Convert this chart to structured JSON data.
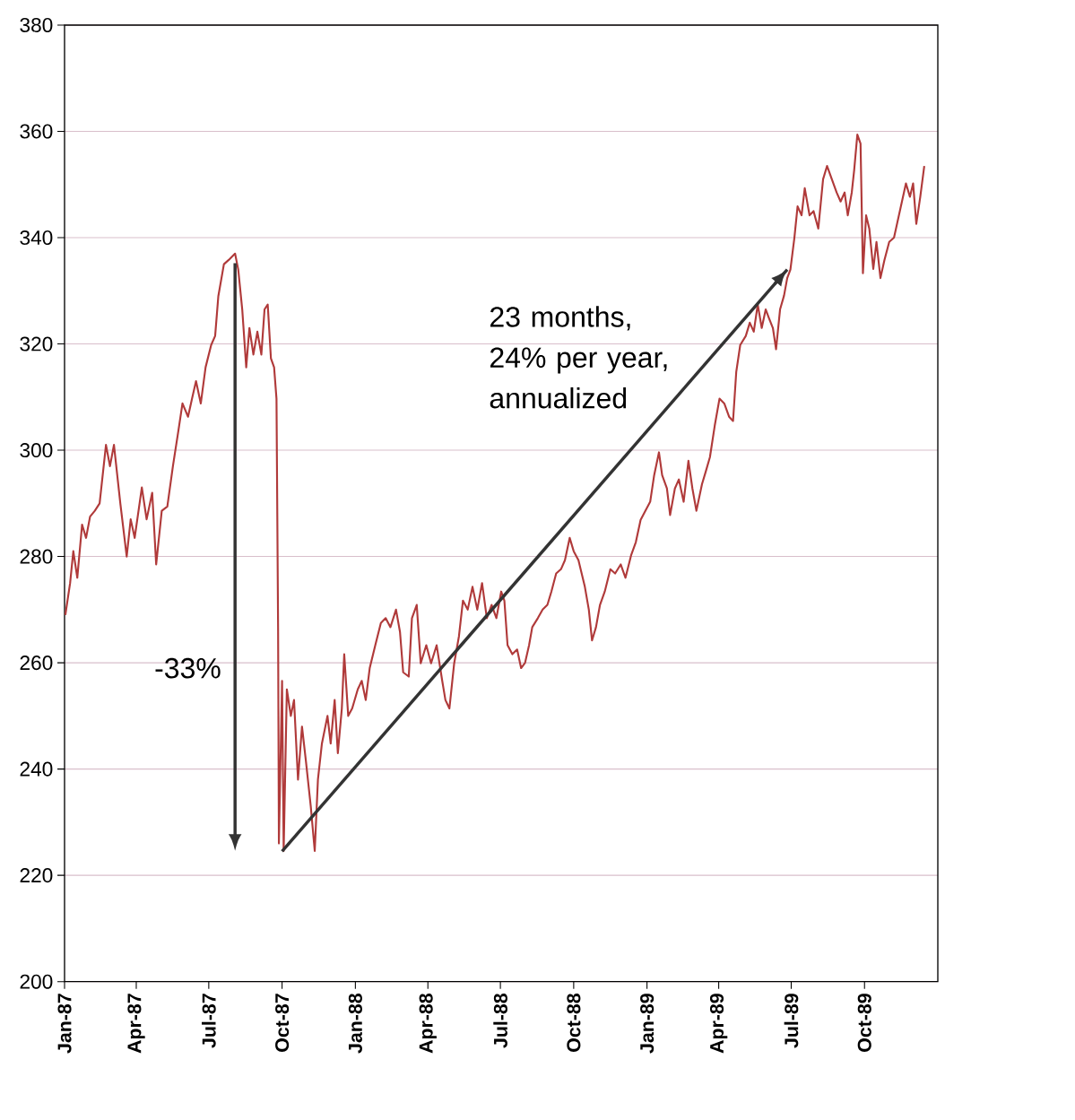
{
  "chart_data": {
    "type": "line",
    "grid": "y",
    "color": "#b03a3a",
    "xlim": [
      "1987-01-01",
      "1990-01-01"
    ],
    "ylim": [
      200,
      380
    ],
    "yticks": [
      200,
      220,
      240,
      260,
      280,
      300,
      320,
      340,
      360,
      380
    ],
    "xticks": [
      {
        "value": "1987-01-01",
        "label": "Jan-87"
      },
      {
        "value": "1987-04-01",
        "label": "Apr-87"
      },
      {
        "value": "1987-07-01",
        "label": "Jul-87"
      },
      {
        "value": "1987-10-01",
        "label": "Oct-87"
      },
      {
        "value": "1988-01-01",
        "label": "Jan-88"
      },
      {
        "value": "1988-04-01",
        "label": "Apr-88"
      },
      {
        "value": "1988-07-01",
        "label": "Jul-88"
      },
      {
        "value": "1988-10-01",
        "label": "Oct-88"
      },
      {
        "value": "1989-01-01",
        "label": "Jan-89"
      },
      {
        "value": "1989-04-01",
        "label": "Apr-89"
      },
      {
        "value": "1989-07-01",
        "label": "Jul-89"
      },
      {
        "value": "1989-10-01",
        "label": "Oct-89"
      }
    ],
    "annotations": [
      "-33%",
      "23 months, 24% per year, annualized"
    ],
    "series": [
      {
        "type": "line",
        "color": "#333333",
        "x": [
          "1987-10-01",
          "1989-06-26"
        ],
        "values": [
          224.5,
          334
        ]
      }
    ],
    "x": [
      "1987-01-02",
      "1987-01-08",
      "1987-01-12",
      "1987-01-17",
      "1987-01-23",
      "1987-01-28",
      "1987-02-02",
      "1987-02-08",
      "1987-02-14",
      "1987-02-22",
      "1987-02-27",
      "1987-03-04",
      "1987-03-12",
      "1987-03-20",
      "1987-03-25",
      "1987-03-30",
      "1987-04-08",
      "1987-04-14",
      "1987-04-21",
      "1987-04-26",
      "1987-05-03",
      "1987-05-10",
      "1987-05-17",
      "1987-05-24",
      "1987-05-29",
      "1987-06-05",
      "1987-06-10",
      "1987-06-15",
      "1987-06-21",
      "1987-06-27",
      "1987-07-04",
      "1987-07-09",
      "1987-07-13",
      "1987-07-20",
      "1987-07-26",
      "1987-08-03",
      "1987-08-07",
      "1987-08-12",
      "1987-08-17",
      "1987-08-21",
      "1987-08-26",
      "1987-08-31",
      "1987-09-05",
      "1987-09-09",
      "1987-09-13",
      "1987-09-17",
      "1987-09-21",
      "1987-09-24",
      "1987-09-26",
      "1987-09-27",
      "1987-10-01",
      "1987-10-03",
      "1987-10-07",
      "1987-10-12",
      "1987-10-16",
      "1987-10-21",
      "1987-10-26",
      "1987-10-31",
      "1987-11-06",
      "1987-11-11",
      "1987-11-15",
      "1987-11-20",
      "1987-11-27",
      "1987-12-01",
      "1987-12-06",
      "1987-12-10",
      "1987-12-15",
      "1987-12-18",
      "1987-12-23",
      "1987-12-28",
      "1988-01-04",
      "1988-01-09",
      "1988-01-14",
      "1988-01-19",
      "1988-01-26",
      "1988-02-02",
      "1988-02-08",
      "1988-02-14",
      "1988-02-21",
      "1988-02-26",
      "1988-03-01",
      "1988-03-08",
      "1988-03-12",
      "1988-03-18",
      "1988-03-23",
      "1988-03-30",
      "1988-04-05",
      "1988-04-12",
      "1988-04-19",
      "1988-04-23",
      "1988-04-28",
      "1988-05-04",
      "1988-05-10",
      "1988-05-15",
      "1988-05-21",
      "1988-05-27",
      "1988-06-02",
      "1988-06-08",
      "1988-06-14",
      "1988-06-20",
      "1988-06-26",
      "1988-07-02",
      "1988-07-06",
      "1988-07-10",
      "1988-07-16",
      "1988-07-22",
      "1988-07-27",
      "1988-08-01",
      "1988-08-06",
      "1988-08-10",
      "1988-08-17",
      "1988-08-23",
      "1988-08-29",
      "1988-09-03",
      "1988-09-09",
      "1988-09-15",
      "1988-09-20",
      "1988-09-26",
      "1988-10-01",
      "1988-10-07",
      "1988-10-11",
      "1988-10-15",
      "1988-10-20",
      "1988-10-24",
      "1988-10-29",
      "1988-11-03",
      "1988-11-09",
      "1988-11-16",
      "1988-11-22",
      "1988-11-29",
      "1988-12-05",
      "1988-12-12",
      "1988-12-18",
      "1988-12-24",
      "1989-01-05",
      "1989-01-10",
      "1989-01-16",
      "1989-01-20",
      "1989-01-26",
      "1989-01-30",
      "1989-02-05",
      "1989-02-10",
      "1989-02-16",
      "1989-02-22",
      "1989-02-27",
      "1989-03-04",
      "1989-03-11",
      "1989-03-16",
      "1989-03-21",
      "1989-03-27",
      "1989-04-02",
      "1989-04-08",
      "1989-04-14",
      "1989-04-19",
      "1989-04-23",
      "1989-04-28",
      "1989-05-05",
      "1989-05-10",
      "1989-05-15",
      "1989-05-20",
      "1989-05-25",
      "1989-05-30",
      "1989-06-03",
      "1989-06-08",
      "1989-06-12",
      "1989-06-17",
      "1989-06-22",
      "1989-06-26",
      "1989-06-30",
      "1989-07-05",
      "1989-07-09",
      "1989-07-14",
      "1989-07-18",
      "1989-07-24",
      "1989-07-29",
      "1989-08-04",
      "1989-08-10",
      "1989-08-15",
      "1989-08-21",
      "1989-08-27",
      "1989-09-01",
      "1989-09-06",
      "1989-09-10",
      "1989-09-15",
      "1989-09-18",
      "1989-09-22",
      "1989-09-26",
      "1989-09-29",
      "1989-10-03",
      "1989-10-07",
      "1989-10-12",
      "1989-10-16",
      "1989-10-21",
      "1989-10-26",
      "1989-11-01",
      "1989-11-07",
      "1989-11-12",
      "1989-11-17",
      "1989-11-22",
      "1989-11-27",
      "1989-12-01",
      "1989-12-05",
      "1989-12-10",
      "1989-12-15"
    ],
    "values": [
      269,
      275,
      281,
      276,
      286,
      283.5,
      287.5,
      288.6,
      290,
      301,
      297,
      301,
      290,
      280,
      287,
      283.5,
      293,
      287,
      292,
      278.5,
      288.6,
      289.4,
      297,
      303.8,
      308.8,
      306.3,
      309.7,
      313,
      308.8,
      315.6,
      319.8,
      321.5,
      329,
      335,
      335.8,
      337,
      334,
      326.5,
      315.6,
      323,
      318,
      322.3,
      318,
      326.5,
      327.4,
      317.3,
      315.6,
      309.7,
      266.7,
      226,
      256.6,
      224.6,
      255,
      250,
      253,
      238,
      248,
      241.4,
      233,
      224.6,
      238,
      244.8,
      250,
      244.8,
      253,
      243,
      251.4,
      261.6,
      250,
      251.4,
      255,
      256.6,
      253,
      259,
      263.3,
      267.5,
      268.4,
      266.7,
      270,
      265.8,
      258.2,
      257.4,
      268.4,
      270.9,
      259.9,
      263.3,
      259.9,
      263.3,
      256.6,
      253,
      251.4,
      259.9,
      265,
      271.7,
      270,
      274.3,
      270,
      275,
      268.4,
      270.9,
      268.4,
      273.4,
      271.7,
      263.3,
      261.6,
      262.5,
      259,
      260,
      263.3,
      266.7,
      268.4,
      270,
      270.9,
      273.4,
      276.8,
      277.6,
      279.3,
      283.5,
      281,
      279.3,
      276.8,
      274.3,
      270,
      264.2,
      266.7,
      270.9,
      273.4,
      277.6,
      276.8,
      278.5,
      276,
      280.2,
      282.7,
      286.9,
      290.3,
      295.3,
      299.6,
      295.3,
      292.8,
      287.8,
      292.8,
      294.5,
      290.3,
      298,
      292.8,
      288.6,
      293.6,
      296.1,
      298.7,
      304.6,
      309.7,
      308.8,
      306.3,
      305.5,
      314.7,
      319.8,
      321.5,
      324,
      322.3,
      327.4,
      323,
      326.5,
      324.9,
      323,
      319,
      326.5,
      329.1,
      332.4,
      334,
      340,
      345.9,
      344.2,
      349.3,
      344.2,
      345,
      341.7,
      351,
      353.5,
      351,
      348.5,
      346.8,
      348.5,
      344.2,
      348.5,
      352.7,
      359.4,
      357.7,
      333.3,
      344.2,
      341.7,
      334.1,
      339.2,
      332.4,
      335.8,
      339.2,
      340,
      343.4,
      346.8,
      350.2,
      347.7,
      350.2,
      342.6,
      347.7,
      353.5
    ]
  }
}
